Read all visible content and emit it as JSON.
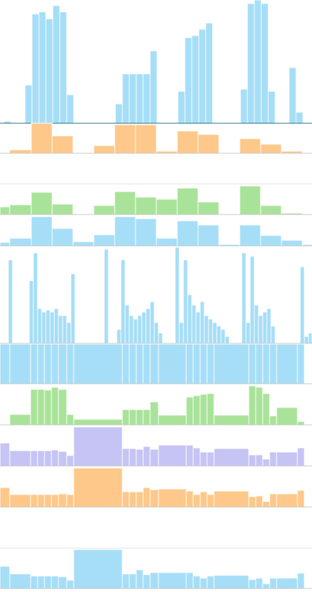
{
  "chart_data": [
    {
      "type": "histogram",
      "color": "#a6def7",
      "xlim": [
        0,
        449
      ],
      "ylim": [
        0,
        177
      ],
      "bins": [
        6,
        16,
        26,
        36,
        46,
        56,
        66,
        76,
        86,
        96,
        106,
        116,
        126,
        136,
        146,
        156,
        166,
        176,
        186,
        196,
        206,
        216,
        226,
        236,
        246,
        256,
        266,
        276,
        286,
        296,
        306,
        316,
        326,
        336,
        346,
        356,
        366,
        376,
        386,
        396,
        406,
        416,
        426,
        436
      ],
      "values": [
        3,
        0,
        0,
        55,
        157,
        160,
        150,
        169,
        160,
        41,
        0,
        0,
        0,
        0,
        0,
        0,
        28,
        71,
        71,
        71,
        71,
        104,
        0,
        0,
        0,
        46,
        123,
        126,
        135,
        144,
        0,
        0,
        0,
        0,
        49,
        172,
        177,
        172,
        46,
        0,
        0,
        80,
        16
      ]
    },
    {
      "type": "histogram",
      "color": "#fdc88a",
      "xlim": [
        0,
        449
      ],
      "ylim": [
        0,
        43
      ],
      "bins": [
        0,
        14,
        45,
        75,
        105,
        135,
        165,
        195,
        225,
        255,
        285,
        315,
        345,
        375,
        405,
        435,
        449
      ],
      "values": [
        0,
        5,
        43,
        25,
        1,
        11,
        41,
        41,
        3,
        32,
        27,
        0,
        21,
        13,
        3,
        0
      ]
    },
    {
      "type": "histogram",
      "color": "#a9e39a",
      "xlim": [
        0,
        449
      ],
      "ylim": [
        0,
        44
      ],
      "bins": [
        0,
        14,
        45,
        75,
        105,
        135,
        165,
        195,
        225,
        255,
        285,
        315,
        345,
        375,
        405,
        435,
        449
      ],
      "values": [
        11,
        14,
        32,
        15,
        0,
        13,
        33,
        25,
        22,
        38,
        18,
        0,
        41,
        13,
        2,
        0
      ]
    },
    {
      "type": "histogram",
      "color": "#a6def7",
      "xlim": [
        0,
        449
      ],
      "ylim": [
        0,
        45
      ],
      "bins": [
        0,
        14,
        45,
        75,
        105,
        135,
        165,
        195,
        225,
        255,
        285,
        315,
        345,
        375,
        405,
        435,
        449
      ],
      "values": [
        5,
        11,
        42,
        25,
        6,
        16,
        42,
        39,
        11,
        36,
        30,
        2,
        30,
        15,
        8,
        2
      ]
    },
    {
      "type": "histogram",
      "color": "#a6def7",
      "xlim": [
        0,
        449
      ],
      "ylim": [
        0,
        140
      ],
      "bins": [
        0,
        6,
        12,
        18,
        24,
        30,
        36,
        42,
        48,
        54,
        60,
        66,
        72,
        78,
        84,
        90,
        96,
        102,
        108,
        114,
        120,
        126,
        132,
        138,
        144,
        150,
        156,
        162,
        168,
        174,
        180,
        186,
        192,
        198,
        204,
        210,
        216,
        222,
        228,
        234,
        240,
        246,
        252,
        258,
        264,
        270,
        276,
        282,
        288,
        294,
        300,
        306,
        312,
        318,
        324,
        330,
        336,
        342,
        348,
        354,
        360,
        366,
        372,
        378,
        384,
        390,
        396,
        402,
        408,
        414,
        420,
        426,
        432,
        438,
        444,
        449
      ],
      "values": [
        0,
        0,
        120,
        0,
        0,
        0,
        0,
        90,
        130,
        50,
        45,
        48,
        45,
        50,
        40,
        40,
        30,
        100,
        0,
        0,
        0,
        0,
        0,
        0,
        0,
        135,
        0,
        0,
        20,
        120,
        55,
        40,
        35,
        40,
        45,
        50,
        60,
        30,
        15,
        0,
        0,
        0,
        138,
        30,
        120,
        70,
        55,
        45,
        60,
        40,
        35,
        30,
        25,
        20,
        10,
        0,
        0,
        0,
        130,
        30,
        125,
        55,
        40,
        45,
        50,
        25,
        0,
        0,
        0,
        0,
        0,
        0,
        110,
        10,
        15
      ]
    },
    {
      "type": "histogram",
      "color": "#a6def7",
      "xlim": [
        0,
        449
      ],
      "ylim": [
        0,
        58
      ],
      "bins": [
        0,
        14,
        44,
        54,
        64,
        74,
        84,
        96,
        106,
        176,
        186,
        196,
        206,
        216,
        228,
        268,
        278,
        288,
        298,
        308,
        358,
        368,
        378,
        388,
        398,
        428,
        438
      ],
      "values": [
        57,
        57,
        57,
        57,
        57,
        57,
        57,
        57,
        57,
        57,
        57,
        57,
        57,
        57,
        57,
        57,
        57,
        57,
        57,
        57,
        57,
        57,
        57,
        57,
        57,
        57
      ]
    },
    {
      "type": "histogram",
      "color": "#a9e39a",
      "xlim": [
        0,
        449
      ],
      "ylim": [
        0,
        58
      ],
      "bins": [
        0,
        14,
        44,
        54,
        64,
        74,
        84,
        96,
        106,
        176,
        186,
        196,
        206,
        216,
        228,
        268,
        278,
        288,
        298,
        308,
        358,
        368,
        378,
        388,
        398,
        428,
        438
      ],
      "values": [
        0,
        15,
        51,
        51,
        50,
        54,
        51,
        15,
        8,
        22,
        22,
        22,
        22,
        33,
        14,
        40,
        42,
        44,
        45,
        14,
        56,
        54,
        45,
        13,
        25,
        5
      ]
    },
    {
      "type": "histogram",
      "color": "#c5c4f5",
      "xlim": [
        0,
        449
      ],
      "ylim": [
        0,
        59
      ],
      "bins": [
        0,
        14,
        44,
        54,
        64,
        74,
        84,
        96,
        106,
        176,
        186,
        196,
        206,
        216,
        228,
        268,
        278,
        288,
        298,
        308,
        358,
        368,
        378,
        388,
        398,
        428,
        438
      ],
      "values": [
        33,
        22,
        22,
        22,
        22,
        23,
        21,
        15,
        56,
        25,
        25,
        24,
        28,
        24,
        30,
        30,
        26,
        20,
        20,
        25,
        16,
        16,
        10,
        20,
        20,
        26
      ]
    },
    {
      "type": "histogram",
      "color": "#fdc88a",
      "xlim": [
        0,
        449
      ],
      "ylim": [
        0,
        58
      ],
      "bins": [
        0,
        14,
        44,
        54,
        64,
        74,
        84,
        96,
        106,
        176,
        186,
        196,
        206,
        216,
        228,
        268,
        278,
        288,
        298,
        308,
        358,
        368,
        378,
        388,
        398,
        428,
        438
      ],
      "values": [
        28,
        18,
        18,
        18,
        18,
        18,
        19,
        18,
        56,
        22,
        22,
        22,
        28,
        25,
        26,
        23,
        18,
        22,
        18,
        23,
        15,
        16,
        8,
        19,
        19,
        24
      ]
    },
    {
      "type": "histogram",
      "color": "#a6def7",
      "xlim": [
        0,
        449
      ],
      "ylim": [
        0,
        58
      ],
      "bins": [
        0,
        14,
        44,
        54,
        64,
        74,
        84,
        96,
        106,
        176,
        186,
        196,
        206,
        216,
        228,
        268,
        278,
        288,
        298,
        308,
        358,
        368,
        378,
        388,
        398,
        428,
        438
      ],
      "values": [
        32,
        21,
        18,
        18,
        18,
        18,
        17,
        12,
        56,
        21,
        21,
        27,
        20,
        23,
        23,
        23,
        18,
        15,
        18,
        19,
        13,
        15,
        7,
        15,
        15,
        22
      ]
    }
  ]
}
